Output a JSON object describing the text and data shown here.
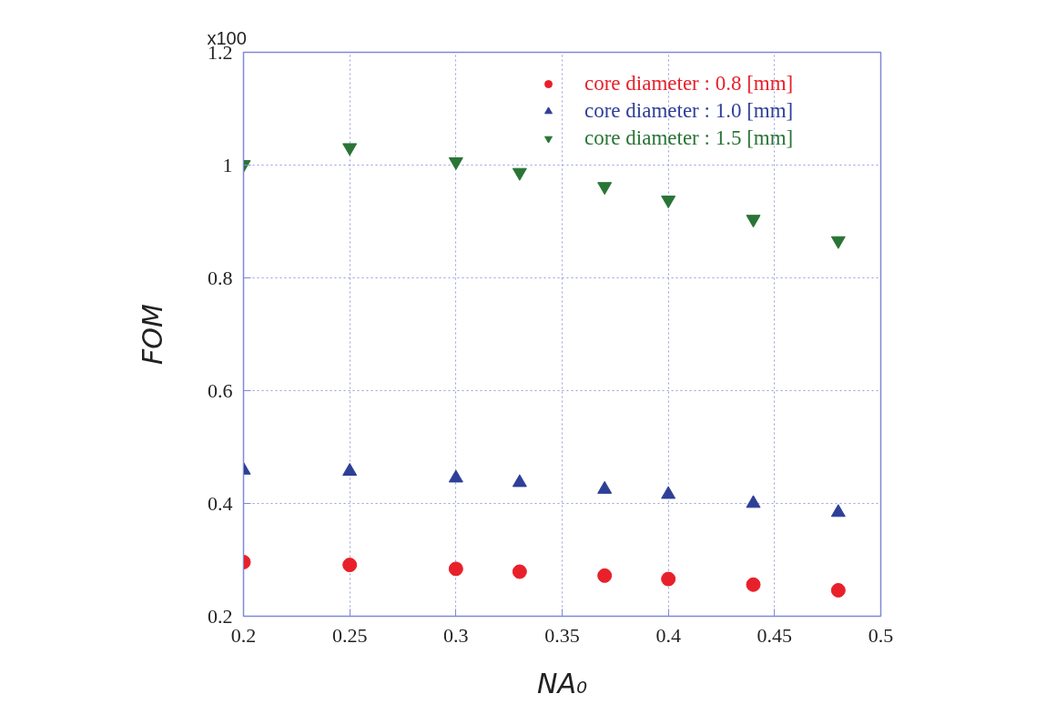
{
  "chart_data": {
    "type": "scatter",
    "xlabel": "NA₀",
    "ylabel": "FOM",
    "annotations": [
      "x100"
    ],
    "x": [
      0.2,
      0.25,
      0.3,
      0.33,
      0.37,
      0.4,
      0.44,
      0.48
    ],
    "series": [
      {
        "name": "core diameter : 0.8 [mm]",
        "color": "#e8202a",
        "marker": "circle",
        "values": [
          0.296,
          0.291,
          0.284,
          0.279,
          0.272,
          0.266,
          0.256,
          0.246
        ]
      },
      {
        "name": "core diameter : 1.0 [mm]",
        "color": "#2e3f97",
        "marker": "triangle",
        "values": [
          0.459,
          0.457,
          0.445,
          0.437,
          0.425,
          0.416,
          0.4,
          0.384
        ]
      },
      {
        "name": "core diameter : 1.5 [mm]",
        "color": "#2a7436",
        "marker": "triangle",
        "values": [
          1.001,
          1.031,
          1.006,
          0.987,
          0.962,
          0.938,
          0.904,
          0.866
        ]
      }
    ],
    "xlim": [
      0.2,
      0.5
    ],
    "ylim": [
      0.2,
      1.2
    ],
    "xticks": [
      0.2,
      0.25,
      0.3,
      0.35,
      0.4,
      0.45,
      0.5
    ],
    "yticks": [
      0.2,
      0.4,
      0.6,
      0.8,
      1,
      1.2
    ],
    "grid": true,
    "legend": "top right"
  }
}
